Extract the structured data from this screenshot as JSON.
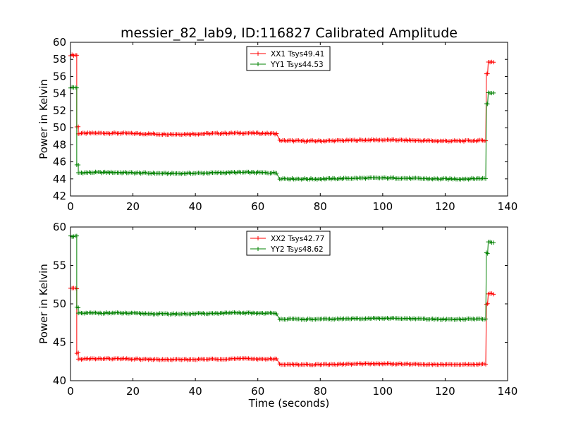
{
  "title": "messier_82_lab9, ID:116827 Calibrated Amplitude",
  "chart_data": [
    {
      "type": "line",
      "xlabel": "",
      "ylabel": "Power in Kelvin",
      "xlim": [
        0,
        140
      ],
      "ylim": [
        42,
        60
      ],
      "xticks": [
        0,
        20,
        40,
        60,
        80,
        100,
        120,
        140
      ],
      "yticks": [
        42,
        44,
        46,
        48,
        50,
        52,
        54,
        56,
        58,
        60
      ],
      "legend_position": "top-center",
      "series": [
        {
          "name": "XX1 Tsys49.41",
          "color": "#ff0000",
          "segments": [
            {
              "t0": 0,
              "t1": 2,
              "value": 58.5
            },
            {
              "t0": 2,
              "t1": 2.5,
              "value": 50.1
            },
            {
              "t0": 2.5,
              "t1": 66,
              "value": 49.3
            },
            {
              "t0": 67,
              "t1": 133,
              "value": 48.5
            },
            {
              "t0": 133.2,
              "t1": 133.6,
              "value": 56.3
            },
            {
              "t0": 133.8,
              "t1": 135.5,
              "value": 57.7
            }
          ]
        },
        {
          "name": "YY1 Tsys44.53",
          "color": "#008000",
          "segments": [
            {
              "t0": 0,
              "t1": 2,
              "value": 54.7
            },
            {
              "t0": 2,
              "t1": 2.5,
              "value": 45.6
            },
            {
              "t0": 2.5,
              "t1": 66,
              "value": 44.7
            },
            {
              "t0": 67,
              "t1": 133,
              "value": 44.05
            },
            {
              "t0": 133.2,
              "t1": 133.6,
              "value": 52.8
            },
            {
              "t0": 133.8,
              "t1": 135.5,
              "value": 54.1
            }
          ]
        }
      ]
    },
    {
      "type": "line",
      "xlabel": "Time (seconds)",
      "ylabel": "Power in Kelvin",
      "xlim": [
        0,
        140
      ],
      "ylim": [
        40,
        60
      ],
      "xticks": [
        0,
        20,
        40,
        60,
        80,
        100,
        120,
        140
      ],
      "yticks": [
        40,
        45,
        50,
        55,
        60
      ],
      "legend_position": "top-center",
      "series": [
        {
          "name": "XX2 Tsys42.77",
          "color": "#ff0000",
          "segments": [
            {
              "t0": 0,
              "t1": 2,
              "value": 52.0
            },
            {
              "t0": 2,
              "t1": 2.5,
              "value": 43.6
            },
            {
              "t0": 2.5,
              "t1": 66,
              "value": 42.8
            },
            {
              "t0": 67,
              "t1": 133,
              "value": 42.15
            },
            {
              "t0": 133.2,
              "t1": 133.6,
              "value": 50.0
            },
            {
              "t0": 133.8,
              "t1": 135.5,
              "value": 51.3
            }
          ]
        },
        {
          "name": "YY2 Tsys48.62",
          "color": "#008000",
          "segments": [
            {
              "t0": 0,
              "t1": 2,
              "value": 58.8
            },
            {
              "t0": 2,
              "t1": 2.5,
              "value": 49.5
            },
            {
              "t0": 2.5,
              "t1": 66,
              "value": 48.75
            },
            {
              "t0": 67,
              "t1": 133,
              "value": 48.05
            },
            {
              "t0": 133.2,
              "t1": 133.6,
              "value": 56.6
            },
            {
              "t0": 133.8,
              "t1": 135.5,
              "value": 58.0
            }
          ]
        }
      ]
    }
  ]
}
